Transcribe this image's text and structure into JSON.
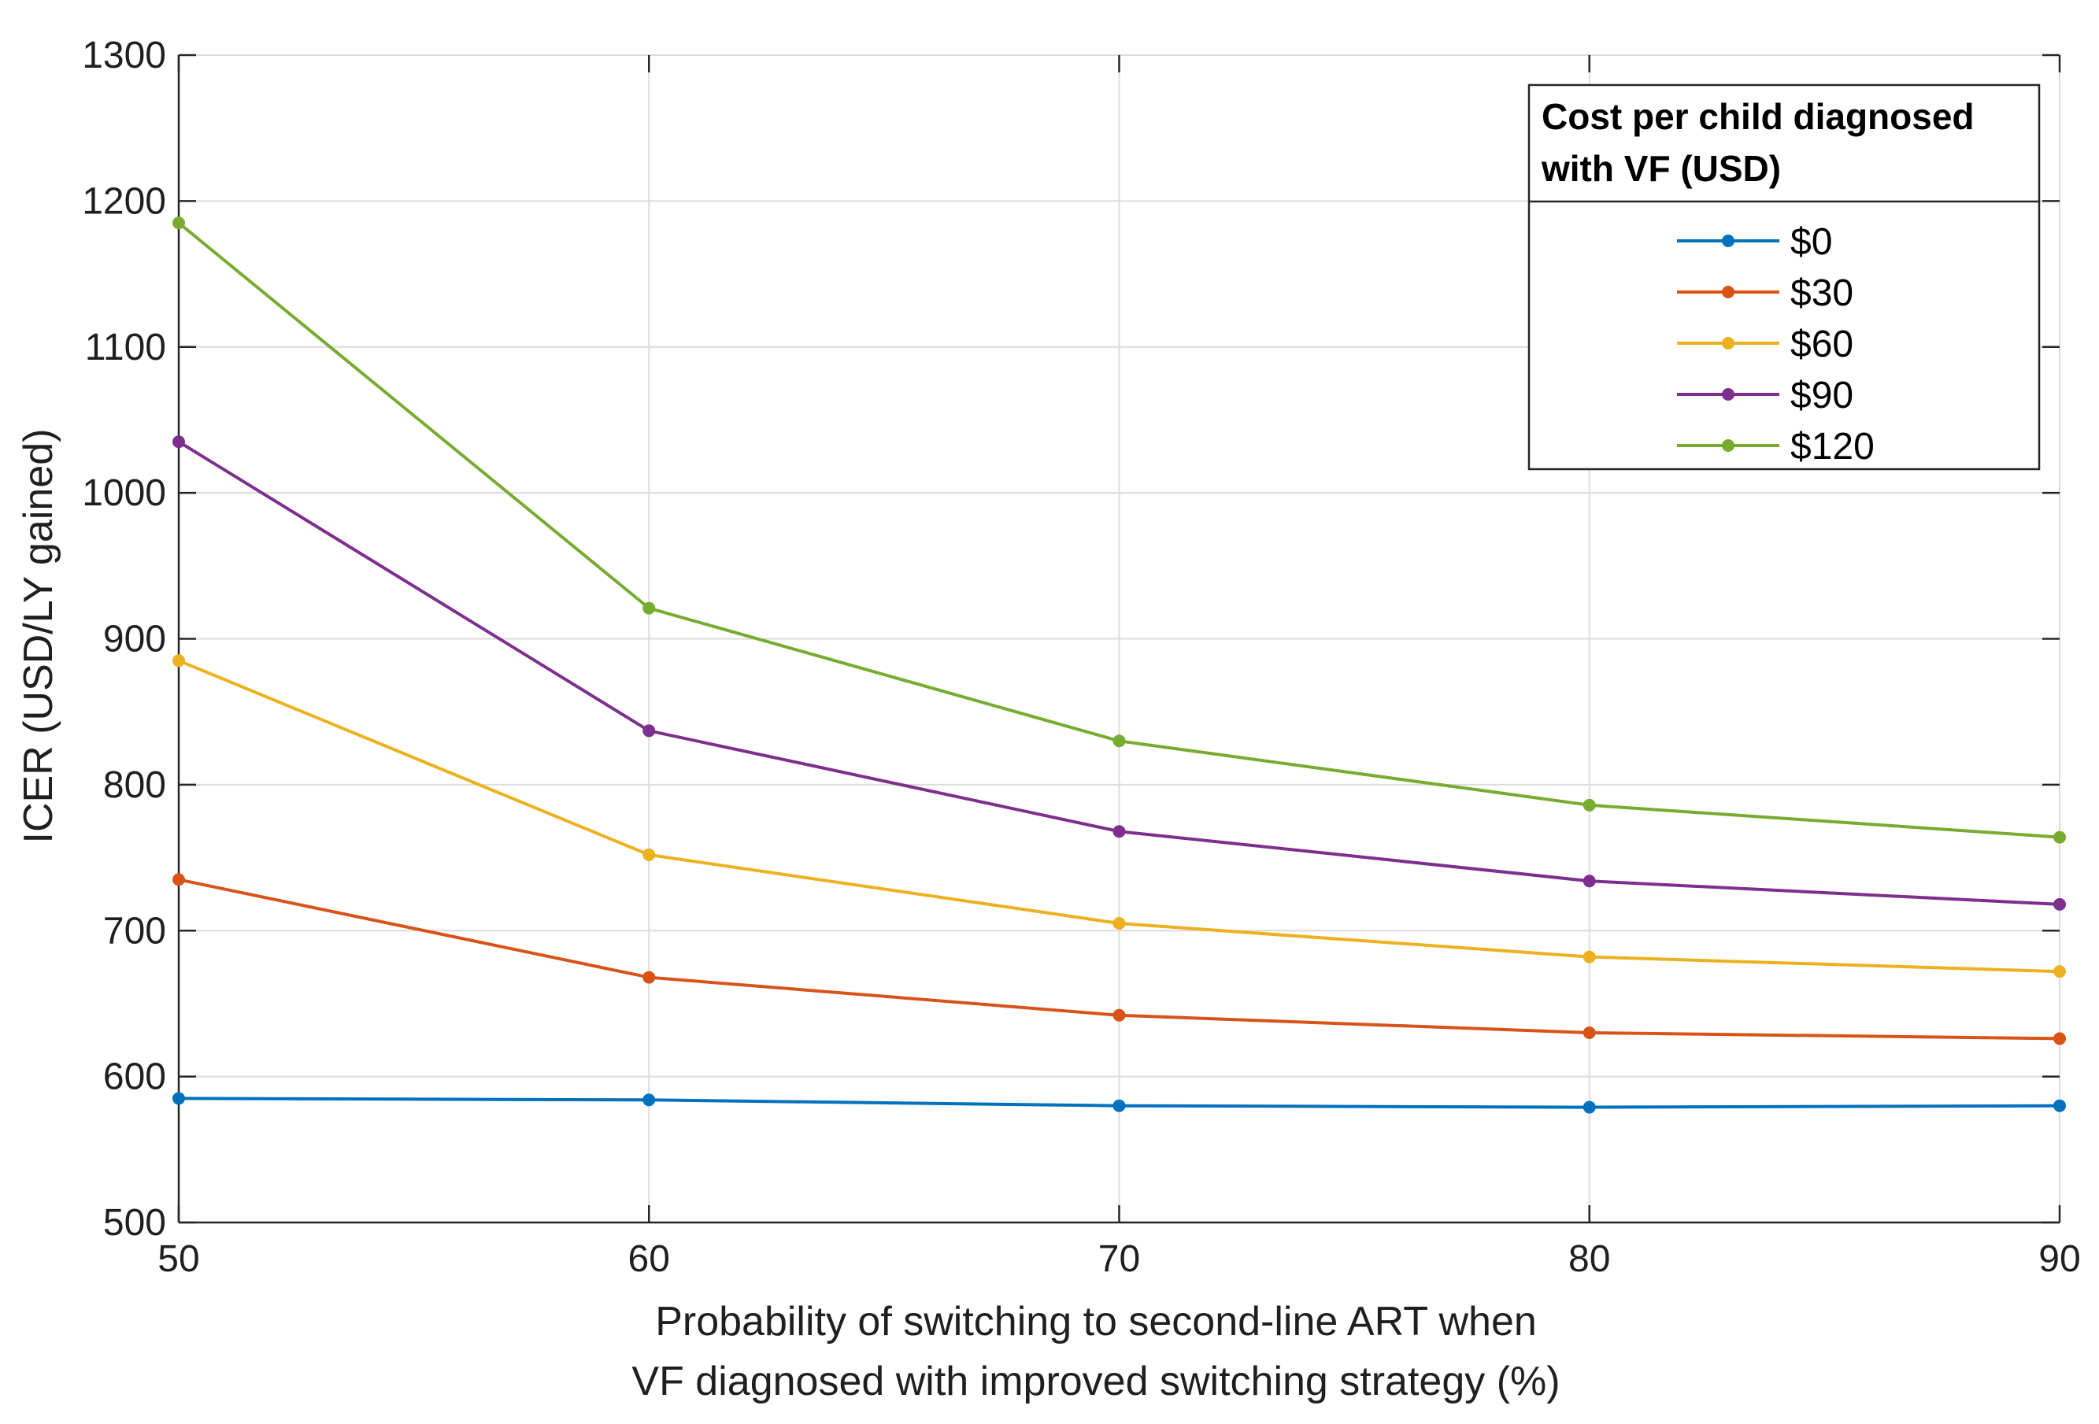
{
  "chart_data": {
    "type": "line",
    "title": "",
    "xlabel_lines": [
      "Probability of switching to second-line ART when",
      "VF diagnosed with improved switching strategy (%)"
    ],
    "ylabel": "ICER (USD/LY gained)",
    "x": [
      50,
      60,
      70,
      80,
      90
    ],
    "xlim": [
      50,
      90
    ],
    "ylim": [
      500,
      1300
    ],
    "xticks": [
      50,
      60,
      70,
      80,
      90
    ],
    "yticks": [
      500,
      600,
      700,
      800,
      900,
      1000,
      1100,
      1200,
      1300
    ],
    "grid": true,
    "legend": {
      "title_lines": [
        "Cost per child diagnosed",
        "with VF (USD)"
      ],
      "placement": "top-right"
    },
    "series": [
      {
        "name": "$0",
        "color": "#0072BD",
        "values": [
          585,
          584,
          580,
          579,
          580
        ]
      },
      {
        "name": "$30",
        "color": "#D95319",
        "values": [
          735,
          668,
          642,
          630,
          626
        ]
      },
      {
        "name": "$60",
        "color": "#EDB120",
        "values": [
          885,
          752,
          705,
          682,
          672
        ]
      },
      {
        "name": "$90",
        "color": "#7E2F8E",
        "values": [
          1035,
          837,
          768,
          734,
          718
        ]
      },
      {
        "name": "$120",
        "color": "#77AC30",
        "values": [
          1185,
          921,
          830,
          786,
          764
        ]
      }
    ]
  }
}
